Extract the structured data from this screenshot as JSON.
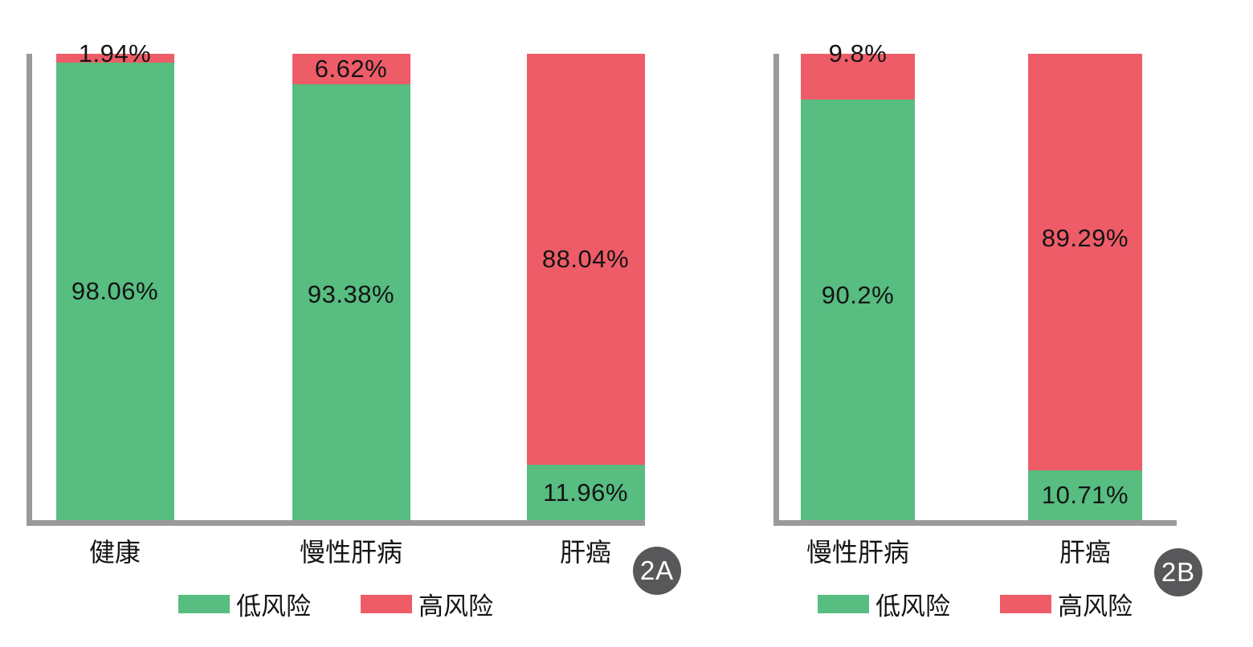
{
  "figure": {
    "background": "#ffffff",
    "colors": {
      "low_risk": "#57bd81",
      "high_risk": "#ee5c68",
      "axis": "#9a9a9a",
      "badge_bg": "#58585a",
      "badge_text": "#ffffff",
      "label_text": "#141414"
    },
    "legend": {
      "low": "低风险",
      "high": "高风险"
    }
  },
  "chart_data": [
    {
      "type": "bar",
      "subtype": "stacked-percentage",
      "badge": "2A",
      "categories": [
        "健康",
        "慢性肝病",
        "肝癌"
      ],
      "series": [
        {
          "name": "低风险",
          "color": "#57bd81",
          "values": [
            98.06,
            93.38,
            11.96
          ],
          "labels": [
            "98.06%",
            "93.38%",
            "11.96%"
          ]
        },
        {
          "name": "高风险",
          "color": "#ee5c68",
          "values": [
            1.94,
            6.62,
            88.04
          ],
          "labels": [
            "1.94%",
            "6.62%",
            "88.04%"
          ]
        }
      ],
      "ylim": [
        0,
        100
      ],
      "grid": false,
      "legend_position": "bottom"
    },
    {
      "type": "bar",
      "subtype": "stacked-percentage",
      "badge": "2B",
      "categories": [
        "慢性肝病",
        "肝癌"
      ],
      "series": [
        {
          "name": "低风险",
          "color": "#57bd81",
          "values": [
            90.2,
            10.71
          ],
          "labels": [
            "90.2%",
            "10.71%"
          ]
        },
        {
          "name": "高风险",
          "color": "#ee5c68",
          "values": [
            9.8,
            89.29
          ],
          "labels": [
            "9.8%",
            "89.29%"
          ]
        }
      ],
      "ylim": [
        0,
        100
      ],
      "grid": false,
      "legend_position": "bottom"
    }
  ]
}
